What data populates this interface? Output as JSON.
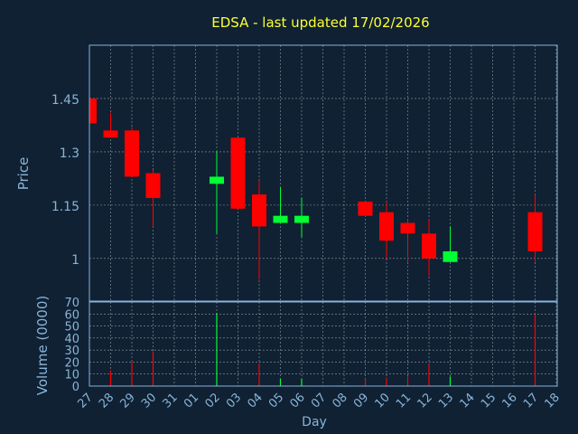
{
  "chart_data": {
    "type": "candlestick",
    "title": "EDSA - last updated 17/02/2026",
    "price_panel": {
      "ylabel": "Price",
      "ylim": [
        0.88,
        1.6
      ],
      "yticks": [
        1,
        1.15,
        1.3,
        1.45
      ],
      "ytick_labels": [
        "1",
        "1.15",
        "1.3",
        "1.45"
      ],
      "grid": true
    },
    "volume_panel": {
      "ylabel": "Volume (0000)",
      "ylim": [
        0,
        70
      ],
      "yticks": [
        0,
        10,
        20,
        30,
        40,
        50,
        60,
        70
      ],
      "ytick_labels": [
        "0",
        "10",
        "20",
        "30",
        "40",
        "50",
        "60",
        "70"
      ],
      "grid": true
    },
    "xlabel": "Day",
    "x_ticks": [
      "27",
      "28",
      "29",
      "30",
      "31",
      "01",
      "02",
      "03",
      "04",
      "05",
      "06",
      "07",
      "08",
      "09",
      "10",
      "11",
      "12",
      "13",
      "14",
      "15",
      "16",
      "17",
      "18"
    ],
    "candles": [
      {
        "day": "27",
        "open": 1.45,
        "high": 1.46,
        "low": 1.38,
        "close": 1.38,
        "volume": 0
      },
      {
        "day": "28",
        "open": 1.36,
        "high": 1.41,
        "low": 1.34,
        "close": 1.34,
        "volume": 13
      },
      {
        "day": "29",
        "open": 1.36,
        "high": 1.37,
        "low": 1.23,
        "close": 1.23,
        "volume": 20
      },
      {
        "day": "30",
        "open": 1.24,
        "high": 1.25,
        "low": 1.09,
        "close": 1.17,
        "volume": 29
      },
      {
        "day": "02",
        "open": 1.21,
        "high": 1.3,
        "low": 1.07,
        "close": 1.23,
        "volume": 61
      },
      {
        "day": "03",
        "open": 1.34,
        "high": 1.34,
        "low": 1.14,
        "close": 1.14,
        "volume": 0
      },
      {
        "day": "04",
        "open": 1.18,
        "high": 1.22,
        "low": 0.94,
        "close": 1.09,
        "volume": 19
      },
      {
        "day": "05",
        "open": 1.1,
        "high": 1.2,
        "low": 1.1,
        "close": 1.12,
        "volume": 6
      },
      {
        "day": "06",
        "open": 1.1,
        "high": 1.17,
        "low": 1.06,
        "close": 1.12,
        "volume": 6
      },
      {
        "day": "09",
        "open": 1.16,
        "high": 1.16,
        "low": 1.12,
        "close": 1.12,
        "volume": 6
      },
      {
        "day": "10",
        "open": 1.13,
        "high": 1.16,
        "low": 1.0,
        "close": 1.05,
        "volume": 7
      },
      {
        "day": "11",
        "open": 1.1,
        "high": 1.11,
        "low": 0.99,
        "close": 1.07,
        "volume": 8
      },
      {
        "day": "12",
        "open": 1.07,
        "high": 1.11,
        "low": 0.95,
        "close": 1.0,
        "volume": 18
      },
      {
        "day": "13",
        "open": 0.99,
        "high": 1.09,
        "low": 0.99,
        "close": 1.02,
        "volume": 8
      },
      {
        "day": "17",
        "open": 1.13,
        "high": 1.18,
        "low": 0.99,
        "close": 1.02,
        "volume": 60
      }
    ],
    "colors": {
      "background": "#0f2133",
      "up": "#00ff33",
      "down": "#ff0000",
      "axis_text": "#8ab4d8",
      "title": "#ffff33"
    }
  }
}
